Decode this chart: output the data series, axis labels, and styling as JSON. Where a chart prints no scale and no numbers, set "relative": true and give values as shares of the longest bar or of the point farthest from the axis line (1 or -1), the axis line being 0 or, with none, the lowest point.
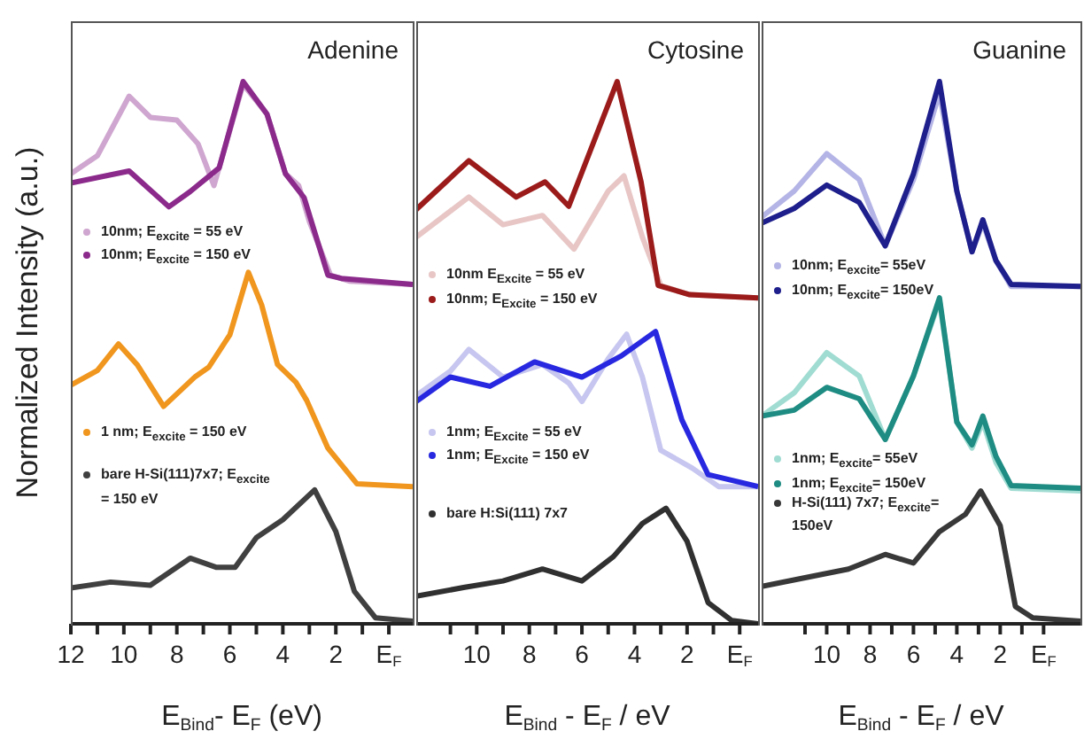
{
  "chart_data": [
    {
      "type": "line",
      "title": "Adenine",
      "xlabel": "E$_{Bind}$- E$_{F}$ (eV)",
      "ylabel": "Normalized Intensity (a.u.)",
      "relative": true,
      "legend": "left",
      "xlim": [
        12,
        -0.9
      ],
      "xticks": [
        12,
        {
          "value": 11,
          "label": null
        },
        10,
        {
          "value": 9,
          "label": null
        },
        8,
        {
          "value": 7,
          "label": null
        },
        6,
        {
          "value": 5,
          "label": null
        },
        4,
        {
          "value": 3,
          "label": null
        },
        2,
        {
          "value": 1,
          "label": null
        },
        {
          "value": 0,
          "label": "E$_{F}$"
        }
      ],
      "series": [
        {
          "name": "10nm; E$_{excite}$ = 55 eV",
          "color": "#cfa6cf",
          "x": [
            12,
            11,
            9.8,
            9.0,
            8.0,
            7.2,
            6.6,
            5.5,
            4.6,
            3.9,
            3.4,
            3.0,
            2.2,
            1.5,
            -0.9
          ],
          "values": [
            0.83,
            0.863,
            0.973,
            0.934,
            0.929,
            0.885,
            0.808,
            0.995,
            0.94,
            0.83,
            0.808,
            0.742,
            0.643,
            0.632,
            0.626
          ]
        },
        {
          "name": "10nm; E$_{excite}$ = 150 eV",
          "color": "#8b2a8b",
          "x": [
            12,
            9.8,
            8.3,
            7.5,
            6.4,
            5.5,
            4.6,
            3.9,
            3.2,
            2.3,
            1.8,
            -0.9
          ],
          "values": [
            0.813,
            0.835,
            0.769,
            0.797,
            0.841,
            1.0,
            0.94,
            0.83,
            0.786,
            0.643,
            0.637,
            0.626
          ]
        },
        {
          "name": "1 nm; E$_{excite}$ = 150 eV",
          "color": "#f0961e",
          "x": [
            12,
            11,
            10.2,
            9.5,
            8.5,
            7.3,
            6.8,
            6.0,
            5.3,
            4.8,
            4.2,
            3.5,
            3.1,
            2.3,
            1.2,
            -0.9
          ],
          "values": [
            0.44,
            0.467,
            0.516,
            0.478,
            0.401,
            0.456,
            0.473,
            0.533,
            0.648,
            0.588,
            0.478,
            0.445,
            0.412,
            0.324,
            0.258,
            0.253
          ]
        },
        {
          "name": "bare H-Si(111)7x7; E$_{excite}$ = 150 eV",
          "color": "#404040",
          "x": [
            12,
            10.5,
            9,
            7.5,
            6.5,
            5.8,
            5.0,
            4.0,
            2.8,
            2.0,
            1.3,
            0.5,
            -0.9
          ],
          "values": [
            0.066,
            0.077,
            0.071,
            0.121,
            0.104,
            0.104,
            0.159,
            0.192,
            0.247,
            0.17,
            0.06,
            0.011,
            0.005
          ]
        }
      ]
    },
    {
      "type": "line",
      "title": "Cytosine",
      "xlabel": "E$_{Bind}$ - E$_{F}$ / eV",
      "relative": true,
      "legend": "left",
      "xlim": [
        12.3,
        -0.7
      ],
      "xticks": [
        {
          "value": 11,
          "label": null
        },
        10,
        {
          "value": 9,
          "label": null
        },
        8,
        {
          "value": 7,
          "label": null
        },
        6,
        {
          "value": 5,
          "label": null
        },
        4,
        {
          "value": 3,
          "label": null
        },
        2,
        {
          "value": 1,
          "label": null
        },
        {
          "value": 0,
          "label": "E$_{F}$"
        }
      ],
      "series": [
        {
          "name": "10nm E$_{Excite}$ = 55 eV",
          "color": "#e8c6c6",
          "x": [
            12.3,
            10.3,
            9,
            7.5,
            6.3,
            5.0,
            4.4,
            3.7,
            3.0,
            1.9,
            -0.7
          ],
          "values": [
            0.713,
            0.787,
            0.736,
            0.753,
            0.691,
            0.798,
            0.826,
            0.713,
            0.624,
            0.607,
            0.601
          ]
        },
        {
          "name": "10nm; E$_{Excite}$ = 150 eV",
          "color": "#9b1b1b",
          "x": [
            12.3,
            10.3,
            8.5,
            7.4,
            6.5,
            4.66,
            3.75,
            3.1,
            1.9,
            -0.7
          ],
          "values": [
            0.764,
            0.854,
            0.787,
            0.815,
            0.77,
            1.0,
            0.815,
            0.624,
            0.607,
            0.601
          ]
        },
        {
          "name": "1nm; E$_{Excite}$ = 55 eV",
          "color": "#c6c6f0",
          "x": [
            12.3,
            11,
            10.3,
            9,
            7.5,
            6.5,
            6.0,
            5.0,
            4.3,
            3.7,
            3.0,
            1.8,
            0.8,
            -0.7
          ],
          "values": [
            0.421,
            0.466,
            0.506,
            0.455,
            0.478,
            0.444,
            0.41,
            0.489,
            0.534,
            0.455,
            0.32,
            0.287,
            0.253,
            0.253
          ]
        },
        {
          "name": "1nm; E$_{Excite}$ = 150 eV",
          "color": "#2828e0",
          "x": [
            12.3,
            11,
            9.5,
            7.8,
            6.0,
            4.5,
            3.2,
            2.2,
            1.2,
            -0.7
          ],
          "values": [
            0.41,
            0.455,
            0.438,
            0.483,
            0.455,
            0.494,
            0.539,
            0.376,
            0.275,
            0.253
          ]
        },
        {
          "name": "bare H:Si(111) 7x7",
          "color": "#303030",
          "x": [
            12.3,
            10.5,
            9,
            7.5,
            6,
            4.8,
            3.7,
            2.8,
            2.0,
            1.2,
            0.3,
            -0.7
          ],
          "values": [
            0.051,
            0.067,
            0.079,
            0.101,
            0.079,
            0.124,
            0.185,
            0.213,
            0.152,
            0.039,
            0.006,
            0
          ]
        }
      ]
    },
    {
      "type": "line",
      "title": "Guanine",
      "xlabel": "E$_{Bind}$ - E$_{F}$ / eV",
      "relative": true,
      "legend": "left",
      "xlim": [
        13,
        -1.7
      ],
      "xticks": [
        {
          "value": 11,
          "label": null
        },
        10,
        {
          "value": 9,
          "label": null
        },
        8,
        {
          "value": 7,
          "label": null
        },
        6,
        {
          "value": 5,
          "label": null
        },
        4,
        {
          "value": 3,
          "label": null
        },
        2,
        {
          "value": 1,
          "label": null
        },
        {
          "value": 0,
          "label": "E$_{F}$"
        }
      ],
      "series": [
        {
          "name": "10nm; E$_{excite}$= 55eV",
          "color": "#b4b4e6",
          "x": [
            13,
            11.5,
            10,
            8.5,
            7.3,
            6.0,
            4.8,
            4.0,
            3.3,
            2.8,
            2.2,
            1.5,
            -1.7
          ],
          "values": [
            0.75,
            0.798,
            0.867,
            0.819,
            0.697,
            0.819,
            0.979,
            0.798,
            0.686,
            0.739,
            0.67,
            0.622,
            0.622
          ]
        },
        {
          "name": "10nm; E$_{excite}$= 150eV",
          "color": "#1e1e8c",
          "x": [
            13,
            11.5,
            10,
            8.5,
            7.3,
            6.0,
            4.8,
            4.0,
            3.3,
            2.8,
            2.2,
            1.5,
            -1.7
          ],
          "values": [
            0.739,
            0.766,
            0.809,
            0.777,
            0.697,
            0.83,
            1.0,
            0.798,
            0.686,
            0.745,
            0.67,
            0.626,
            0.622
          ]
        },
        {
          "name": "1nm; E$_{excite}$= 55eV",
          "color": "#a0dcd2",
          "x": [
            13,
            11.5,
            10,
            8.5,
            7.3,
            6,
            4.8,
            4.0,
            3.3,
            2.8,
            2.2,
            1.5,
            -1.7
          ],
          "values": [
            0.383,
            0.426,
            0.5,
            0.457,
            0.34,
            0.457,
            0.596,
            0.372,
            0.324,
            0.372,
            0.298,
            0.25,
            0.245
          ]
        },
        {
          "name": "1nm; E$_{excite}$= 150eV",
          "color": "#1e8c82",
          "x": [
            13,
            11.5,
            10,
            8.5,
            7.3,
            6,
            4.8,
            4.0,
            3.3,
            2.8,
            2.2,
            1.5,
            -1.7
          ],
          "values": [
            0.383,
            0.394,
            0.436,
            0.415,
            0.34,
            0.457,
            0.601,
            0.372,
            0.33,
            0.383,
            0.309,
            0.255,
            0.25
          ]
        },
        {
          "name": "H-Si(111) 7x7; E$_{excite}$= 150eV",
          "color": "#383838",
          "x": [
            13,
            11,
            9,
            7.3,
            6,
            4.8,
            3.6,
            2.9,
            2.0,
            1.3,
            0.5,
            -1.7
          ],
          "values": [
            0.069,
            0.085,
            0.101,
            0.128,
            0.112,
            0.17,
            0.202,
            0.245,
            0.181,
            0.032,
            0.011,
            0.005
          ]
        }
      ]
    }
  ]
}
